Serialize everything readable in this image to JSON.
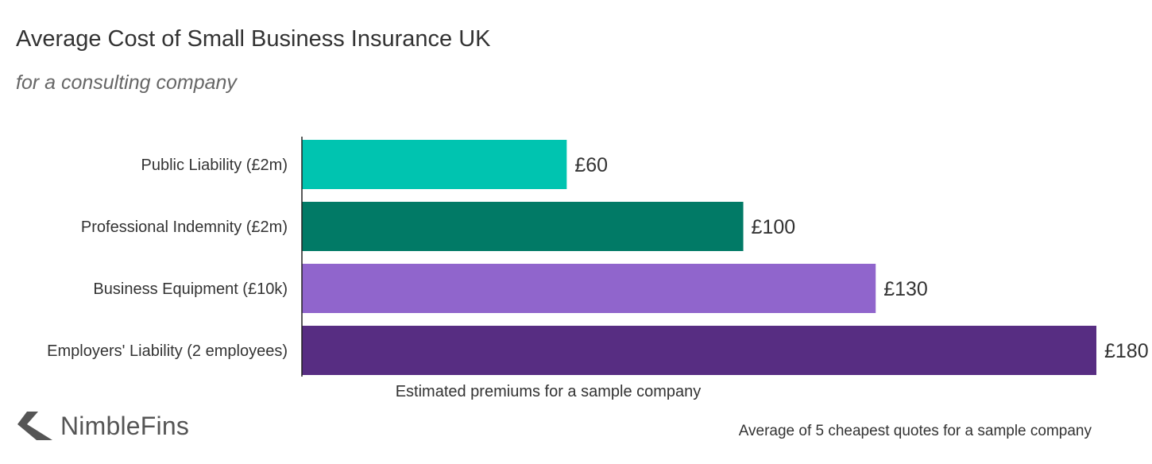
{
  "title": "Average Cost of Small Business Insurance UK",
  "subtitle": "for a consulting company",
  "footnote": "Average of 5 cheapest quotes for a sample company",
  "brand": {
    "name": "NimbleFins",
    "logo_icon": "chevron-left-icon",
    "logo_color": "#555555"
  },
  "chart_data": {
    "type": "bar",
    "orientation": "horizontal",
    "categories": [
      "Public Liability (£2m)",
      "Professional Indemnity (£2m)",
      "Business Equipment (£10k)",
      "Employers' Liability (2 employees)"
    ],
    "values": [
      60,
      100,
      130,
      180
    ],
    "value_labels": [
      "£60",
      "£100",
      "£130",
      "£180"
    ],
    "colors": [
      "#00c4b0",
      "#017a66",
      "#9065cc",
      "#572d82"
    ],
    "xlabel": "Estimated premiums for a sample company",
    "ylabel": "",
    "xlim": [
      0,
      180
    ],
    "grid": false,
    "legend": "none"
  }
}
